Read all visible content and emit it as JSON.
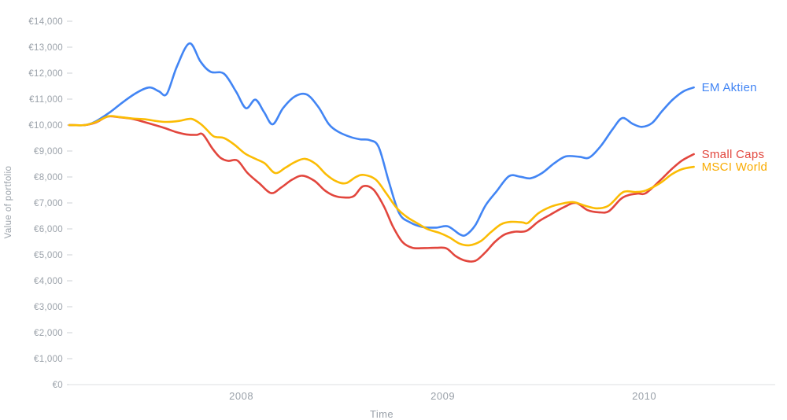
{
  "chart_data": {
    "type": "line",
    "title": "",
    "xlabel": "Time",
    "ylabel": "Value of portfolio",
    "grid": false,
    "legend_position": "end-of-line-right",
    "currency": "EUR",
    "xlim": [
      2007.146,
      2010.65
    ],
    "ylim": [
      0,
      14000
    ],
    "x_ticks": [
      {
        "t": 2008,
        "label": "2008"
      },
      {
        "t": 2009,
        "label": "2009"
      },
      {
        "t": 2010,
        "label": "2010"
      }
    ],
    "y_ticks": [
      {
        "v": 0,
        "label": "€0"
      },
      {
        "v": 1000,
        "label": "€1,000"
      },
      {
        "v": 2000,
        "label": "€2,000"
      },
      {
        "v": 3000,
        "label": "€3,000"
      },
      {
        "v": 4000,
        "label": "€4,000"
      },
      {
        "v": 5000,
        "label": "€5,000"
      },
      {
        "v": 6000,
        "label": "€6,000"
      },
      {
        "v": 7000,
        "label": "€7,000"
      },
      {
        "v": 8000,
        "label": "€8,000"
      },
      {
        "v": 9000,
        "label": "€9,000"
      },
      {
        "v": 10000,
        "label": "€10,000"
      },
      {
        "v": 11000,
        "label": "€11,000"
      },
      {
        "v": 12000,
        "label": "€12,000"
      },
      {
        "v": 13000,
        "label": "€13,000"
      },
      {
        "v": 14000,
        "label": "€14,000"
      }
    ],
    "axis_color": "#dcdfe2",
    "tick_color": "#cdd1d5",
    "text_color": "#9aa1a9",
    "series": [
      {
        "name": "EM Aktien",
        "color": "#4285F4",
        "label_color": "#4285F4",
        "points": [
          [
            2007.146,
            10000
          ],
          [
            2007.224,
            10000
          ],
          [
            2007.279,
            10150
          ],
          [
            2007.349,
            10500
          ],
          [
            2007.407,
            10850
          ],
          [
            2007.481,
            11250
          ],
          [
            2007.544,
            11450
          ],
          [
            2007.591,
            11300
          ],
          [
            2007.63,
            11200
          ],
          [
            2007.68,
            12250
          ],
          [
            2007.743,
            13150
          ],
          [
            2007.797,
            12450
          ],
          [
            2007.848,
            12050
          ],
          [
            2007.914,
            11980
          ],
          [
            2007.973,
            11300
          ],
          [
            2008.023,
            10650
          ],
          [
            2008.07,
            10980
          ],
          [
            2008.113,
            10500
          ],
          [
            2008.156,
            10030
          ],
          [
            2008.207,
            10650
          ],
          [
            2008.265,
            11100
          ],
          [
            2008.324,
            11180
          ],
          [
            2008.382,
            10700
          ],
          [
            2008.433,
            10050
          ],
          [
            2008.48,
            9750
          ],
          [
            2008.538,
            9550
          ],
          [
            2008.589,
            9450
          ],
          [
            2008.636,
            9420
          ],
          [
            2008.682,
            9150
          ],
          [
            2008.733,
            7800
          ],
          [
            2008.784,
            6600
          ],
          [
            2008.838,
            6250
          ],
          [
            2008.901,
            6070
          ],
          [
            2008.967,
            6050
          ],
          [
            2009.025,
            6100
          ],
          [
            2009.084,
            5790
          ],
          [
            2009.115,
            5770
          ],
          [
            2009.162,
            6150
          ],
          [
            2009.212,
            6900
          ],
          [
            2009.267,
            7450
          ],
          [
            2009.329,
            8030
          ],
          [
            2009.384,
            8010
          ],
          [
            2009.435,
            7950
          ],
          [
            2009.493,
            8150
          ],
          [
            2009.552,
            8520
          ],
          [
            2009.61,
            8790
          ],
          [
            2009.676,
            8780
          ],
          [
            2009.727,
            8750
          ],
          [
            2009.785,
            9200
          ],
          [
            2009.844,
            9850
          ],
          [
            2009.891,
            10270
          ],
          [
            2009.942,
            10050
          ],
          [
            2009.988,
            9930
          ],
          [
            2010.039,
            10080
          ],
          [
            2010.09,
            10550
          ],
          [
            2010.14,
            10970
          ],
          [
            2010.195,
            11300
          ],
          [
            2010.246,
            11450
          ]
        ]
      },
      {
        "name": "Small Caps",
        "color": "#E2463D",
        "label_color": "#E2463D",
        "points": [
          [
            2007.146,
            10000
          ],
          [
            2007.224,
            10000
          ],
          [
            2007.279,
            10100
          ],
          [
            2007.337,
            10330
          ],
          [
            2007.396,
            10300
          ],
          [
            2007.458,
            10240
          ],
          [
            2007.513,
            10130
          ],
          [
            2007.567,
            10010
          ],
          [
            2007.622,
            9880
          ],
          [
            2007.676,
            9730
          ],
          [
            2007.727,
            9640
          ],
          [
            2007.778,
            9620
          ],
          [
            2007.809,
            9640
          ],
          [
            2007.856,
            9100
          ],
          [
            2007.895,
            8750
          ],
          [
            2007.934,
            8620
          ],
          [
            2007.981,
            8630
          ],
          [
            2008.031,
            8150
          ],
          [
            2008.09,
            7750
          ],
          [
            2008.148,
            7380
          ],
          [
            2008.199,
            7600
          ],
          [
            2008.253,
            7900
          ],
          [
            2008.304,
            8050
          ],
          [
            2008.363,
            7850
          ],
          [
            2008.413,
            7490
          ],
          [
            2008.46,
            7280
          ],
          [
            2008.511,
            7210
          ],
          [
            2008.558,
            7260
          ],
          [
            2008.604,
            7640
          ],
          [
            2008.655,
            7520
          ],
          [
            2008.706,
            6900
          ],
          [
            2008.752,
            6100
          ],
          [
            2008.799,
            5500
          ],
          [
            2008.85,
            5270
          ],
          [
            2008.908,
            5260
          ],
          [
            2008.967,
            5270
          ],
          [
            2009.018,
            5250
          ],
          [
            2009.064,
            4950
          ],
          [
            2009.111,
            4780
          ],
          [
            2009.162,
            4770
          ],
          [
            2009.212,
            5100
          ],
          [
            2009.259,
            5500
          ],
          [
            2009.306,
            5780
          ],
          [
            2009.357,
            5890
          ],
          [
            2009.415,
            5920
          ],
          [
            2009.474,
            6280
          ],
          [
            2009.532,
            6540
          ],
          [
            2009.602,
            6840
          ],
          [
            2009.661,
            7000
          ],
          [
            2009.719,
            6720
          ],
          [
            2009.774,
            6640
          ],
          [
            2009.824,
            6680
          ],
          [
            2009.883,
            7150
          ],
          [
            2009.922,
            7300
          ],
          [
            2009.969,
            7360
          ],
          [
            2010.008,
            7380
          ],
          [
            2010.078,
            7860
          ],
          [
            2010.136,
            8300
          ],
          [
            2010.187,
            8630
          ],
          [
            2010.246,
            8880
          ]
        ]
      },
      {
        "name": "MSCI World",
        "color": "#FBBC04",
        "label_color": "#F9AB00",
        "points": [
          [
            2007.146,
            10000
          ],
          [
            2007.224,
            10000
          ],
          [
            2007.279,
            10120
          ],
          [
            2007.341,
            10340
          ],
          [
            2007.396,
            10310
          ],
          [
            2007.466,
            10250
          ],
          [
            2007.524,
            10220
          ],
          [
            2007.583,
            10150
          ],
          [
            2007.63,
            10120
          ],
          [
            2007.692,
            10160
          ],
          [
            2007.751,
            10240
          ],
          [
            2007.797,
            10050
          ],
          [
            2007.825,
            9850
          ],
          [
            2007.864,
            9560
          ],
          [
            2007.914,
            9500
          ],
          [
            2007.965,
            9250
          ],
          [
            2008.019,
            8900
          ],
          [
            2008.07,
            8700
          ],
          [
            2008.117,
            8520
          ],
          [
            2008.168,
            8150
          ],
          [
            2008.218,
            8350
          ],
          [
            2008.265,
            8570
          ],
          [
            2008.316,
            8700
          ],
          [
            2008.37,
            8500
          ],
          [
            2008.421,
            8100
          ],
          [
            2008.472,
            7830
          ],
          [
            2008.519,
            7760
          ],
          [
            2008.569,
            8000
          ],
          [
            2008.608,
            8080
          ],
          [
            2008.667,
            7900
          ],
          [
            2008.721,
            7350
          ],
          [
            2008.772,
            6800
          ],
          [
            2008.823,
            6450
          ],
          [
            2008.877,
            6200
          ],
          [
            2008.928,
            5980
          ],
          [
            2008.986,
            5840
          ],
          [
            2009.033,
            5670
          ],
          [
            2009.084,
            5430
          ],
          [
            2009.134,
            5370
          ],
          [
            2009.189,
            5530
          ],
          [
            2009.24,
            5880
          ],
          [
            2009.29,
            6180
          ],
          [
            2009.337,
            6270
          ],
          [
            2009.396,
            6250
          ],
          [
            2009.423,
            6230
          ],
          [
            2009.474,
            6600
          ],
          [
            2009.532,
            6840
          ],
          [
            2009.59,
            6970
          ],
          [
            2009.649,
            7030
          ],
          [
            2009.707,
            6890
          ],
          [
            2009.766,
            6790
          ],
          [
            2009.824,
            6900
          ],
          [
            2009.883,
            7350
          ],
          [
            2009.914,
            7450
          ],
          [
            2009.961,
            7420
          ],
          [
            2010.008,
            7480
          ],
          [
            2010.078,
            7760
          ],
          [
            2010.136,
            8100
          ],
          [
            2010.187,
            8300
          ],
          [
            2010.246,
            8390
          ]
        ]
      }
    ]
  }
}
